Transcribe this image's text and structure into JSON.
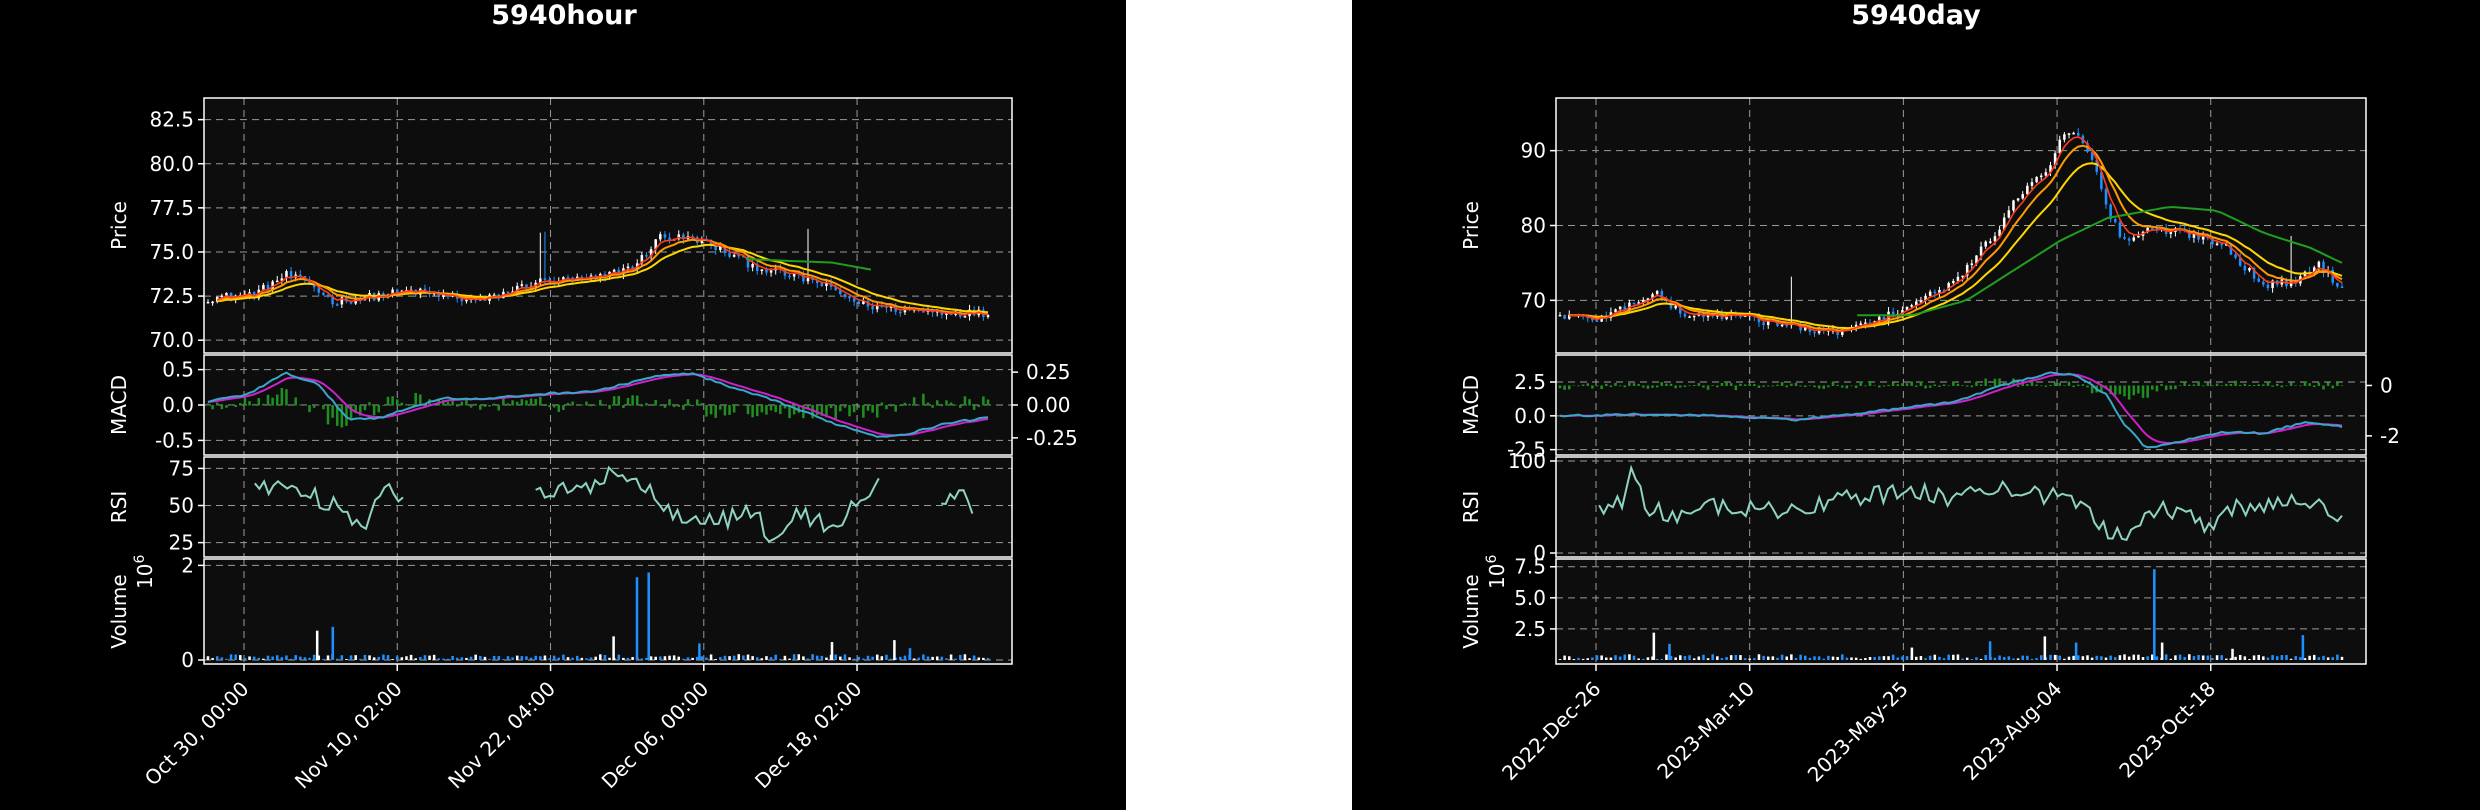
{
  "colors": {
    "background": "#000000",
    "candle_up": "#ffffff",
    "candle_down": "#1e90ff",
    "ma_short": "#ff3b1f",
    "ma_mid": "#ff9900",
    "ma_long_a": "#ffd700",
    "ma_long_b": "#1f9e1f",
    "macd_line": "#3aa7c8",
    "signal_line": "#cc22cc",
    "macd_hist": "#1f8f1f",
    "rsi_line": "#8fd3c3",
    "volume_up": "#ffffff",
    "volume_down": "#1e90ff"
  },
  "chart_data": [
    {
      "type": "candlestick",
      "title": "5940hour",
      "x_tick_labels": [
        "Oct 30, 00:00",
        "Nov 10, 02:00",
        "Nov 22, 04:00",
        "Dec 06, 00:00",
        "Dec 18, 02:00"
      ],
      "price": {
        "ylabel": "Price",
        "ylim": [
          69.5,
          83.5
        ],
        "ticks": [
          "70.0",
          "72.5",
          "75.0",
          "77.5",
          "80.0",
          "82.5"
        ],
        "tick_values": [
          70.0,
          72.5,
          75.0,
          77.5,
          80.0,
          82.5
        ],
        "close_keypoints": [
          [
            0,
            72.4
          ],
          [
            0.06,
            72.6
          ],
          [
            0.1,
            73.7
          ],
          [
            0.13,
            73.2
          ],
          [
            0.16,
            72.2
          ],
          [
            0.2,
            72.4
          ],
          [
            0.26,
            72.8
          ],
          [
            0.3,
            72.5
          ],
          [
            0.35,
            72.2
          ],
          [
            0.42,
            73.3
          ],
          [
            0.5,
            73.5
          ],
          [
            0.55,
            74.3
          ],
          [
            0.58,
            75.9
          ],
          [
            0.63,
            75.7
          ],
          [
            0.7,
            74.2
          ],
          [
            0.78,
            73.3
          ],
          [
            0.84,
            72.0
          ],
          [
            0.9,
            71.7
          ],
          [
            0.95,
            71.6
          ],
          [
            1.0,
            71.5
          ]
        ],
        "green_ma_keypoints": [
          [
            0.69,
            74.6
          ],
          [
            0.74,
            74.5
          ],
          [
            0.8,
            74.4
          ],
          [
            0.85,
            74.0
          ]
        ]
      },
      "macd": {
        "ylabel": "MACD",
        "ylim": [
          -0.65,
          0.65
        ],
        "ticks": [
          "-0.5",
          "0.0",
          "0.5"
        ],
        "tick_values": [
          -0.5,
          0.0,
          0.5
        ],
        "hist_ticks": [
          "-0.25",
          "0.00",
          "0.25"
        ],
        "hist_tick_values": [
          -0.25,
          0.0,
          0.25
        ],
        "hist_ylim": [
          -0.35,
          0.35
        ],
        "line_keypoints": [
          [
            0,
            0.05
          ],
          [
            0.05,
            0.15
          ],
          [
            0.1,
            0.45
          ],
          [
            0.14,
            0.3
          ],
          [
            0.18,
            -0.2
          ],
          [
            0.22,
            -0.18
          ],
          [
            0.3,
            0.1
          ],
          [
            0.35,
            0.08
          ],
          [
            0.42,
            0.15
          ],
          [
            0.5,
            0.2
          ],
          [
            0.57,
            0.4
          ],
          [
            0.62,
            0.45
          ],
          [
            0.67,
            0.25
          ],
          [
            0.73,
            0.05
          ],
          [
            0.8,
            -0.25
          ],
          [
            0.86,
            -0.45
          ],
          [
            0.9,
            -0.4
          ],
          [
            0.95,
            -0.25
          ],
          [
            1.0,
            -0.18
          ]
        ]
      },
      "rsi": {
        "ylabel": "RSI",
        "ylim": [
          18,
          80
        ],
        "ticks": [
          "25",
          "50",
          "75"
        ],
        "tick_values": [
          25,
          50,
          75
        ],
        "segments": [
          [
            0.06,
            0.25
          ],
          [
            0.42,
            0.86
          ],
          [
            0.94,
            0.98
          ]
        ],
        "keypoints": [
          [
            0.06,
            65
          ],
          [
            0.1,
            62
          ],
          [
            0.14,
            55
          ],
          [
            0.18,
            45
          ],
          [
            0.2,
            35
          ],
          [
            0.23,
            70
          ],
          [
            0.25,
            50
          ],
          [
            0.42,
            58
          ],
          [
            0.48,
            60
          ],
          [
            0.52,
            75
          ],
          [
            0.56,
            62
          ],
          [
            0.6,
            45
          ],
          [
            0.66,
            40
          ],
          [
            0.7,
            48
          ],
          [
            0.72,
            25
          ],
          [
            0.76,
            45
          ],
          [
            0.8,
            35
          ],
          [
            0.86,
            65
          ],
          [
            0.94,
            52
          ],
          [
            0.96,
            58
          ],
          [
            0.98,
            50
          ]
        ]
      },
      "volume": {
        "ylabel": "Volume",
        "exponent_label": "10",
        "exponent_power": "6",
        "ylim": [
          0,
          2.05
        ],
        "ticks": [
          "0",
          "2"
        ],
        "tick_values": [
          0,
          2
        ],
        "spikes": [
          [
            0.14,
            0.62,
            "up"
          ],
          [
            0.16,
            0.7,
            "down"
          ],
          [
            0.52,
            0.5,
            "up"
          ],
          [
            0.55,
            1.75,
            "down"
          ],
          [
            0.565,
            1.85,
            "down"
          ],
          [
            0.63,
            0.35,
            "down"
          ],
          [
            0.8,
            0.38,
            "up"
          ],
          [
            0.88,
            0.42,
            "up"
          ],
          [
            0.9,
            0.25,
            "down"
          ]
        ]
      }
    },
    {
      "type": "candlestick",
      "title": "5940day",
      "x_tick_labels": [
        "2022-Dec-26",
        "2023-Mar-10",
        "2023-May-25",
        "2023-Aug-04",
        "2023-Oct-18"
      ],
      "price": {
        "ylabel": "Price",
        "ylim": [
          63.5,
          96.5
        ],
        "ticks": [
          "70",
          "80",
          "90"
        ],
        "tick_values": [
          70,
          80,
          90
        ],
        "close_keypoints": [
          [
            0,
            68
          ],
          [
            0.05,
            67.5
          ],
          [
            0.12,
            71
          ],
          [
            0.16,
            68
          ],
          [
            0.22,
            68
          ],
          [
            0.3,
            66.5
          ],
          [
            0.34,
            65.5
          ],
          [
            0.4,
            67
          ],
          [
            0.45,
            69.5
          ],
          [
            0.5,
            72
          ],
          [
            0.55,
            78
          ],
          [
            0.6,
            86
          ],
          [
            0.63,
            88
          ],
          [
            0.64,
            92
          ],
          [
            0.66,
            93
          ],
          [
            0.68,
            89
          ],
          [
            0.7,
            82
          ],
          [
            0.72,
            78
          ],
          [
            0.76,
            79.5
          ],
          [
            0.8,
            79
          ],
          [
            0.85,
            77.5
          ],
          [
            0.88,
            74
          ],
          [
            0.9,
            72
          ],
          [
            0.94,
            72.5
          ],
          [
            0.97,
            75
          ],
          [
            1.0,
            71.5
          ]
        ],
        "green_ma_keypoints": [
          [
            0.38,
            68
          ],
          [
            0.45,
            68
          ],
          [
            0.52,
            70
          ],
          [
            0.58,
            74
          ],
          [
            0.64,
            78
          ],
          [
            0.7,
            81
          ],
          [
            0.78,
            82.5
          ],
          [
            0.84,
            82
          ],
          [
            0.9,
            79
          ],
          [
            0.96,
            77
          ],
          [
            1.0,
            75
          ]
        ]
      },
      "macd": {
        "ylabel": "MACD",
        "ylim": [
          -2.6,
          4.2
        ],
        "ticks": [
          "-2.5",
          "0.0",
          "2.5"
        ],
        "tick_values": [
          -2.5,
          0.0,
          2.5
        ],
        "hist_ticks": [
          "-2",
          "0"
        ],
        "hist_tick_values": [
          -2,
          0
        ],
        "hist_ylim": [
          -2.6,
          1.05
        ],
        "line_keypoints": [
          [
            0,
            0
          ],
          [
            0.1,
            0.1
          ],
          [
            0.2,
            0.0
          ],
          [
            0.3,
            -0.3
          ],
          [
            0.4,
            0.3
          ],
          [
            0.5,
            1.0
          ],
          [
            0.58,
            2.5
          ],
          [
            0.63,
            3.2
          ],
          [
            0.66,
            3.0
          ],
          [
            0.7,
            1.5
          ],
          [
            0.72,
            -0.5
          ],
          [
            0.75,
            -2.4
          ],
          [
            0.8,
            -1.8
          ],
          [
            0.85,
            -1.2
          ],
          [
            0.9,
            -1.3
          ],
          [
            0.95,
            -0.5
          ],
          [
            1.0,
            -0.8
          ]
        ]
      },
      "rsi": {
        "ylabel": "RSI",
        "ylim": [
          0,
          100
        ],
        "ticks": [
          "0",
          "100"
        ],
        "tick_values": [
          0,
          100
        ],
        "segments": [
          [
            0.05,
            1.0
          ]
        ],
        "keypoints": [
          [
            0.05,
            50
          ],
          [
            0.08,
            55
          ],
          [
            0.09,
            95
          ],
          [
            0.11,
            50
          ],
          [
            0.15,
            40
          ],
          [
            0.2,
            50
          ],
          [
            0.3,
            45
          ],
          [
            0.35,
            58
          ],
          [
            0.45,
            68
          ],
          [
            0.5,
            60
          ],
          [
            0.55,
            72
          ],
          [
            0.6,
            65
          ],
          [
            0.65,
            58
          ],
          [
            0.68,
            45
          ],
          [
            0.7,
            20
          ],
          [
            0.73,
            25
          ],
          [
            0.76,
            48
          ],
          [
            0.8,
            45
          ],
          [
            0.83,
            30
          ],
          [
            0.86,
            48
          ],
          [
            0.9,
            50
          ],
          [
            0.95,
            58
          ],
          [
            1.0,
            40
          ]
        ]
      },
      "volume": {
        "ylabel": "Volume",
        "exponent_label": "10",
        "exponent_power": "6",
        "ylim": [
          0,
          7.8
        ],
        "ticks": [
          "2.5",
          "5.0",
          "7.5"
        ],
        "tick_values": [
          2.5,
          5.0,
          7.5
        ],
        "spikes": [
          [
            0.12,
            2.2,
            "up"
          ],
          [
            0.14,
            1.3,
            "down"
          ],
          [
            0.45,
            1.0,
            "up"
          ],
          [
            0.55,
            1.5,
            "down"
          ],
          [
            0.62,
            1.9,
            "up"
          ],
          [
            0.66,
            1.4,
            "down"
          ],
          [
            0.76,
            7.3,
            "down"
          ],
          [
            0.77,
            1.4,
            "up"
          ],
          [
            0.86,
            0.9,
            "up"
          ],
          [
            0.95,
            2.0,
            "down"
          ]
        ]
      }
    }
  ]
}
